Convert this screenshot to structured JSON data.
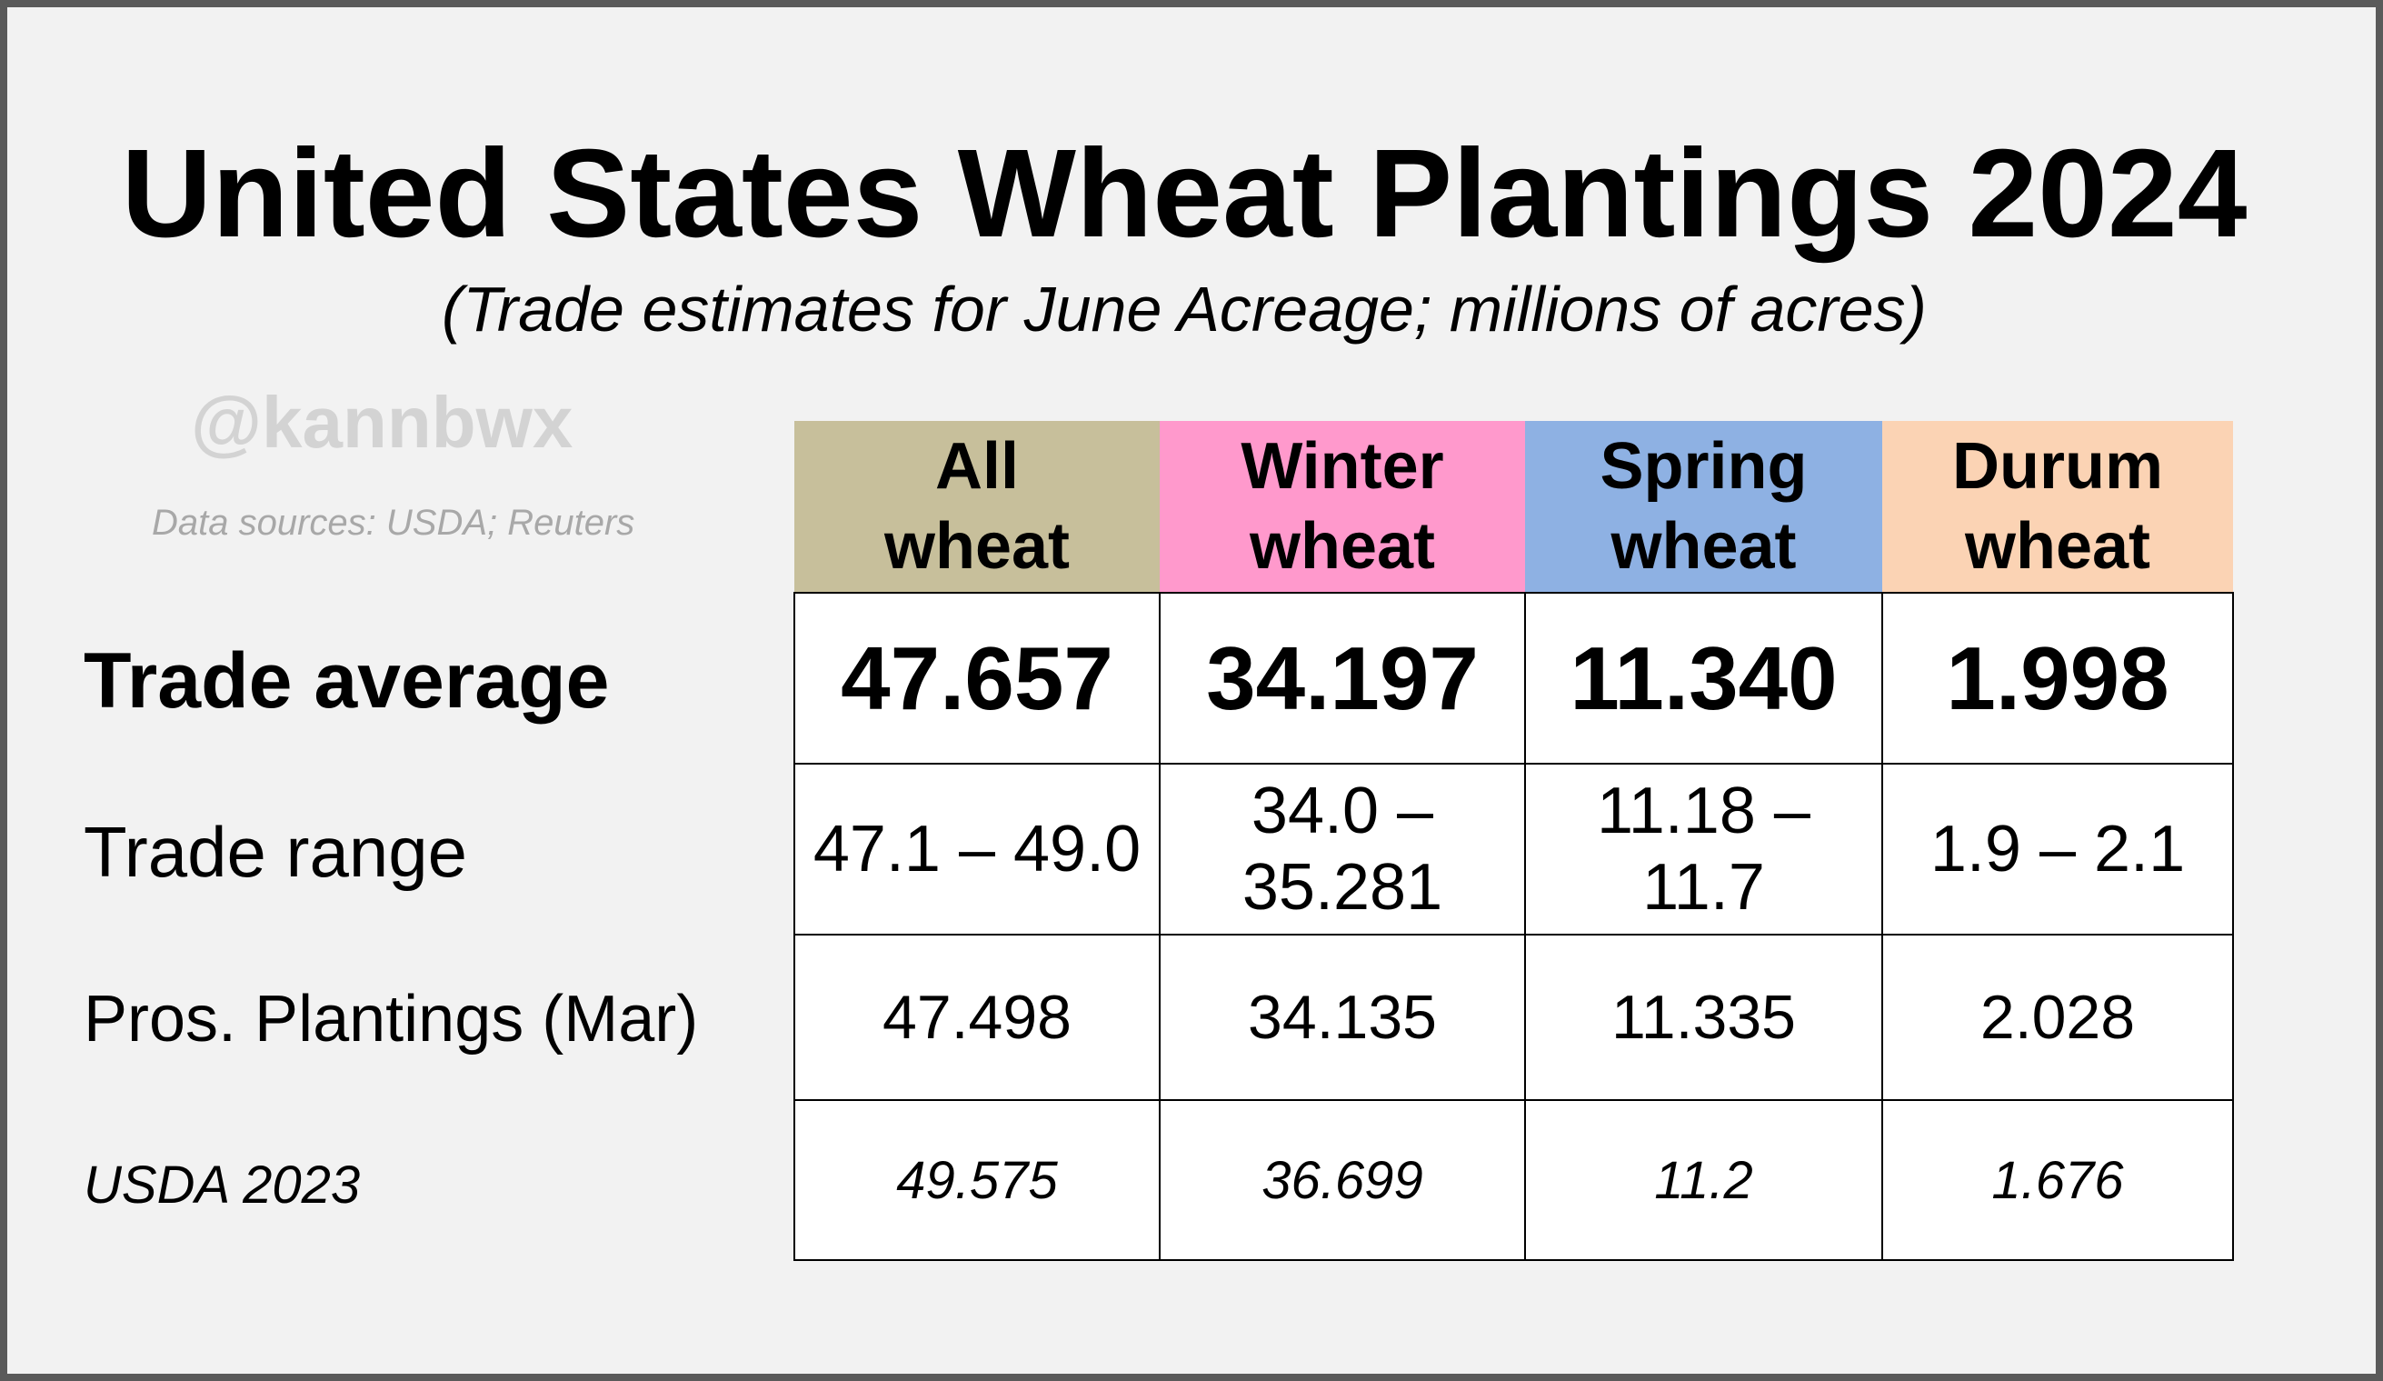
{
  "title": "United States Wheat Plantings 2024",
  "subtitle": "(Trade estimates for June Acreage; millions of acres)",
  "watermark_handle": "@kannbwx",
  "sources": "Data sources: USDA; Reuters",
  "colors": {
    "background": "#f2f2f2",
    "all_wheat": "#c7bf9b",
    "winter_wheat": "#ff99cc",
    "spring_wheat": "#8eb1e3",
    "durum_wheat": "#fbd3b4"
  },
  "chart_data": {
    "type": "table",
    "title": "United States Wheat Plantings 2024",
    "subtitle": "(Trade estimates for June Acreage; millions of acres)",
    "columns": [
      {
        "line1": "All",
        "line2": "wheat"
      },
      {
        "line1": "Winter",
        "line2": "wheat"
      },
      {
        "line1": "Spring",
        "line2": "wheat"
      },
      {
        "line1": "Durum",
        "line2": "wheat"
      }
    ],
    "rows": [
      {
        "label": "Trade average",
        "cells": [
          "47.657",
          "34.197",
          "11.340",
          "1.998"
        ]
      },
      {
        "label": "Trade range",
        "cells": [
          "47.1 – 49.0",
          "34.0 – 35.281",
          "11.18 – 11.7",
          "1.9 – 2.1"
        ]
      },
      {
        "label": "Pros. Plantings (Mar)",
        "cells": [
          "47.498",
          "34.135",
          "11.335",
          "2.028"
        ]
      },
      {
        "label": "USDA 2023",
        "cells": [
          "49.575",
          "36.699",
          "11.2",
          "1.676"
        ]
      }
    ]
  }
}
